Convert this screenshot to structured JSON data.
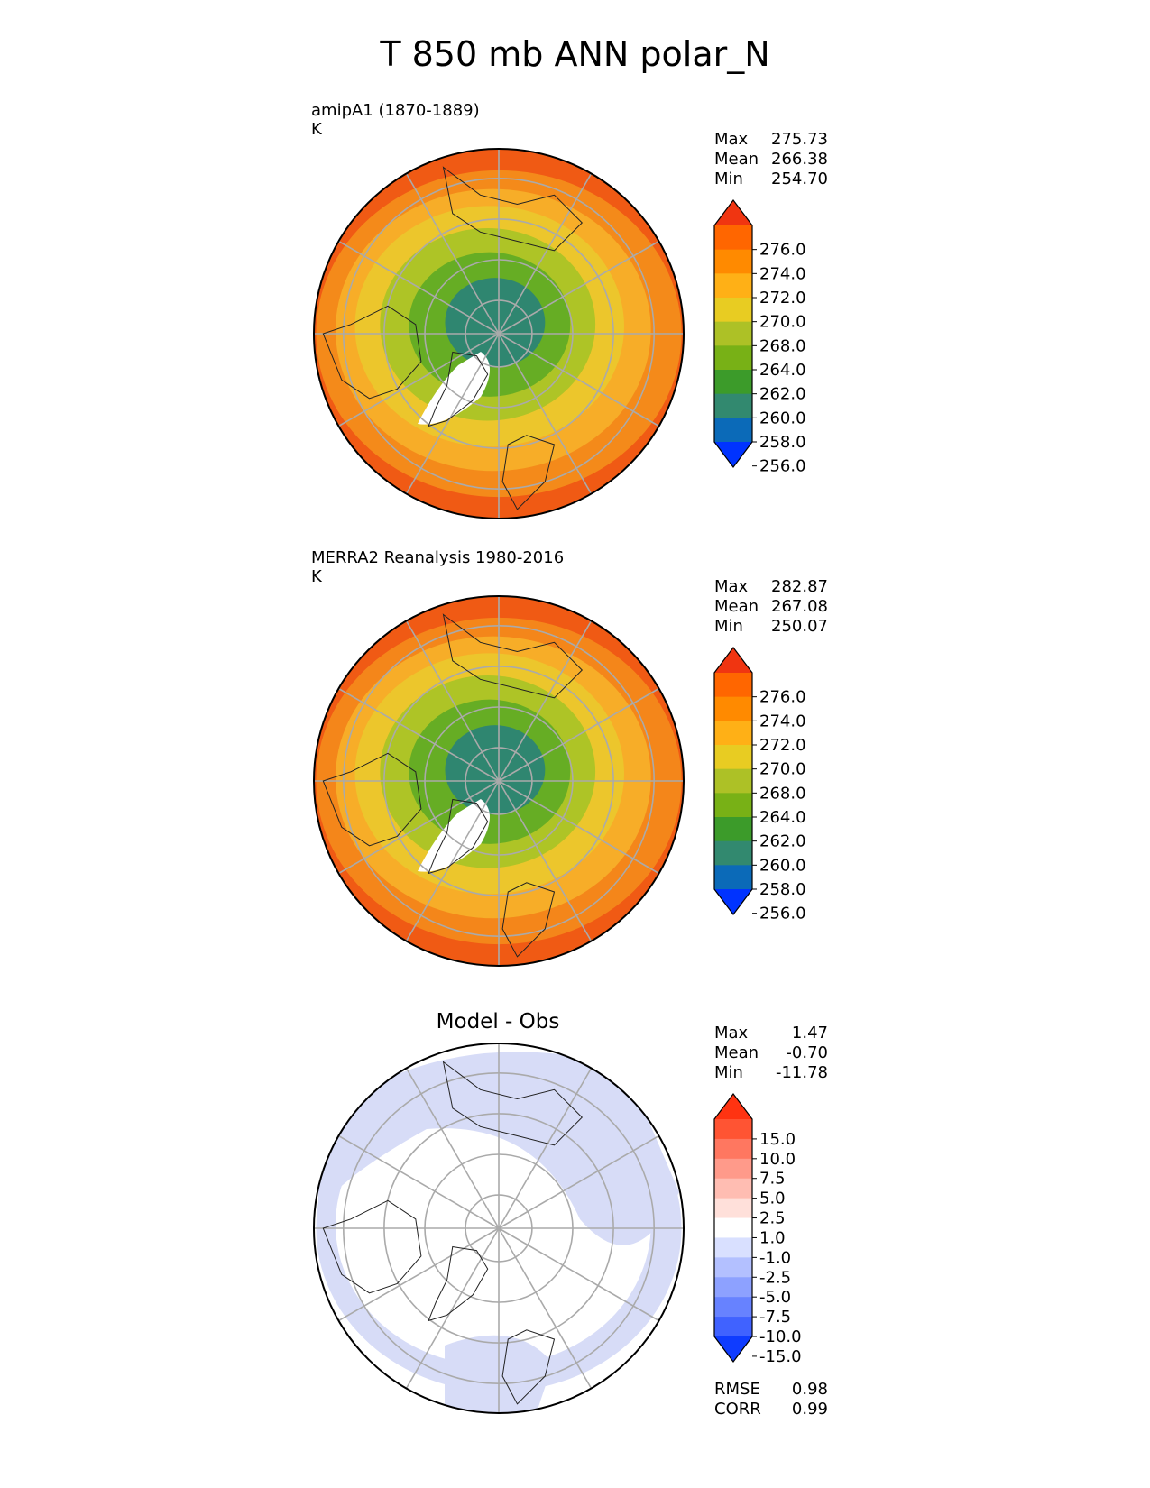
{
  "title": "T 850 mb ANN polar_N",
  "panels": [
    {
      "title_line1": "amipA1 (1870-1889)",
      "title_line2": "K",
      "stats": [
        {
          "label": "Max",
          "value": "275.73"
        },
        {
          "label": "Mean",
          "value": "266.38"
        },
        {
          "label": "Min",
          "value": "254.70"
        }
      ],
      "colorbar": {
        "ticks": [
          "276.0",
          "274.0",
          "272.0",
          "270.0",
          "268.0",
          "264.0",
          "262.0",
          "260.0",
          "258.0",
          "256.0"
        ],
        "colors": [
          "#f03511",
          "#ff6600",
          "#ff8a00",
          "#ffb016",
          "#e8cc22",
          "#adc126",
          "#78b116",
          "#3c9b2a",
          "#32896f",
          "#0b6ab8",
          "#0033ff"
        ]
      },
      "map_rings": [
        "#f48a1a",
        "#f7ad28",
        "#ecc62c",
        "#aec426",
        "#66ad24",
        "#2f8670"
      ]
    },
    {
      "title_line1": "MERRA2 Reanalysis 1980-2016",
      "title_line2": "K",
      "stats": [
        {
          "label": "Max",
          "value": "282.87"
        },
        {
          "label": "Mean",
          "value": "267.08"
        },
        {
          "label": "Min",
          "value": "250.07"
        }
      ],
      "colorbar": {
        "ticks": [
          "276.0",
          "274.0",
          "272.0",
          "270.0",
          "268.0",
          "264.0",
          "262.0",
          "260.0",
          "258.0",
          "256.0"
        ],
        "colors": [
          "#f03511",
          "#ff6600",
          "#ff8a00",
          "#ffb016",
          "#e8cc22",
          "#adc126",
          "#78b116",
          "#3c9b2a",
          "#32896f",
          "#0b6ab8",
          "#0033ff"
        ]
      },
      "map_rings": [
        "#f4861a",
        "#f7ad28",
        "#ecc62c",
        "#aec426",
        "#66ad24",
        "#2f8670"
      ]
    },
    {
      "title_line1": "Model - Obs",
      "stats": [
        {
          "label": "Max",
          "value": "1.47"
        },
        {
          "label": "Mean",
          "value": "-0.70"
        },
        {
          "label": "Min",
          "value": "-11.78"
        }
      ],
      "colorbar": {
        "ticks": [
          "15.0",
          "10.0",
          "7.5",
          "5.0",
          "2.5",
          "1.0",
          "-1.0",
          "-2.5",
          "-5.0",
          "-7.5",
          "-10.0",
          "-15.0"
        ],
        "colors": [
          "#ff3311",
          "#ff5433",
          "#ff7760",
          "#ff9a8a",
          "#ffbdb2",
          "#ffe0da",
          "#ffffff",
          "#d9e0ff",
          "#b3c0ff",
          "#8da1ff",
          "#6782ff",
          "#4062ff",
          "#0f3cff"
        ]
      },
      "map_rings": [
        "#d7dcf7",
        "#ffffff",
        "#ffffff",
        "#ffffff",
        "#ffffff",
        "#ffffff"
      ],
      "metrics": [
        {
          "label": "RMSE",
          "value": "0.98"
        },
        {
          "label": "CORR",
          "value": "0.99"
        }
      ]
    }
  ]
}
